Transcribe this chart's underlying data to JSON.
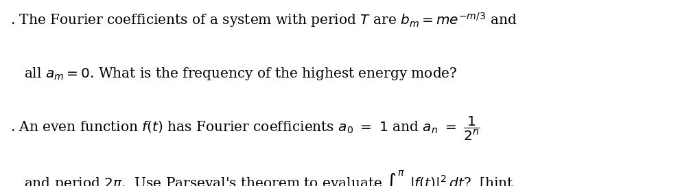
{
  "background_color": "#ffffff",
  "figsize": [
    10.07,
    2.71
  ],
  "dpi": 100,
  "font_size": 14.5,
  "text_color": "#000000"
}
